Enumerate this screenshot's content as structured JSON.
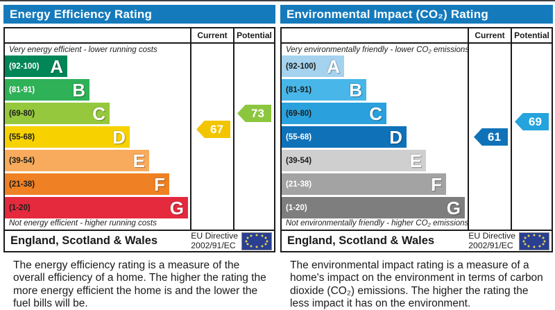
{
  "colors": {
    "header_bg": "#157abc",
    "flag_bg": "#2a3f92",
    "flag_star": "#e8d44d",
    "border": "#1a1a1a"
  },
  "left": {
    "title": "Energy Efficiency Rating",
    "columns": {
      "current": "Current",
      "potential": "Potential"
    },
    "top_note": "Very energy efficient - lower running costs",
    "bottom_note": "Not energy efficient - higher running costs",
    "bands": [
      {
        "letter": "A",
        "range": "(92-100)",
        "color": "#008657",
        "text": "#ffffff"
      },
      {
        "letter": "B",
        "range": "(81-91)",
        "color": "#2eb157",
        "text": "#ffffff"
      },
      {
        "letter": "C",
        "range": "(69-80)",
        "color": "#95c83c",
        "text": "#1d1d1b"
      },
      {
        "letter": "D",
        "range": "(55-68)",
        "color": "#f7d200",
        "text": "#1d1d1b"
      },
      {
        "letter": "E",
        "range": "(39-54)",
        "color": "#f8ab5c",
        "text": "#1d1d1b"
      },
      {
        "letter": "F",
        "range": "(21-38)",
        "color": "#ef8023",
        "text": "#1d1d1b"
      },
      {
        "letter": "G",
        "range": "(1-20)",
        "color": "#e52a3d",
        "text": "#1d1d1b"
      }
    ],
    "current": {
      "value": "67",
      "color": "#f2c500"
    },
    "potential": {
      "value": "73",
      "color": "#8cc63e"
    },
    "footer": {
      "region": "England, Scotland & Wales",
      "directive_line1": "EU Directive",
      "directive_line2": "2002/91/EC"
    },
    "description": "The energy efficiency rating is a measure of the overall efficiency of a home. The higher the rating the more energy efficient the home is and the lower the fuel bills will be."
  },
  "right": {
    "title": "Environmental Impact (CO₂) Rating",
    "columns": {
      "current": "Current",
      "potential": "Potential"
    },
    "top_note": "Very environmentally friendly - lower CO₂ emissions",
    "bottom_note": "Not environmentally friendly - higher CO₂ emissions",
    "bands": [
      {
        "letter": "A",
        "range": "(92-100)",
        "color": "#a5d2ee",
        "text": "#1d1d1b"
      },
      {
        "letter": "B",
        "range": "(81-91)",
        "color": "#48b6e8",
        "text": "#1d1d1b"
      },
      {
        "letter": "C",
        "range": "(69-80)",
        "color": "#2aa1dc",
        "text": "#1d1d1b"
      },
      {
        "letter": "D",
        "range": "(55-68)",
        "color": "#0f72b9",
        "text": "#ffffff"
      },
      {
        "letter": "E",
        "range": "(39-54)",
        "color": "#cfcfcf",
        "text": "#1d1d1b"
      },
      {
        "letter": "F",
        "range": "(21-38)",
        "color": "#a3a3a3",
        "text": "#ffffff"
      },
      {
        "letter": "G",
        "range": "(1-20)",
        "color": "#7e7e7e",
        "text": "#ffffff"
      }
    ],
    "current": {
      "value": "61",
      "color": "#0f72b9"
    },
    "potential": {
      "value": "69",
      "color": "#24a3dd"
    },
    "footer": {
      "region": "England, Scotland & Wales",
      "directive_line1": "EU Directive",
      "directive_line2": "2002/91/EC"
    },
    "description": "The environmental impact rating is a measure of a home's impact on the environment in terms of carbon dioxide (CO₂) emissions. The higher the rating the less impact it has on the environment."
  },
  "chart_data": [
    {
      "type": "bar",
      "title": "Energy Efficiency Rating",
      "categories": [
        "A",
        "B",
        "C",
        "D",
        "E",
        "F",
        "G"
      ],
      "band_ranges": [
        "92-100",
        "81-91",
        "69-80",
        "55-68",
        "39-54",
        "21-38",
        "1-20"
      ],
      "band_colors": [
        "#008657",
        "#2eb157",
        "#95c83c",
        "#f7d200",
        "#f8ab5c",
        "#ef8023",
        "#e52a3d"
      ],
      "series": [
        {
          "name": "Current",
          "values": [
            67
          ],
          "band": "D",
          "color": "#f2c500"
        },
        {
          "name": "Potential",
          "values": [
            73
          ],
          "band": "C",
          "color": "#8cc63e"
        }
      ],
      "xlabel": "",
      "ylabel": "",
      "ylim": [
        1,
        100
      ],
      "annotations": [
        "Very energy efficient - lower running costs",
        "Not energy efficient - higher running costs"
      ],
      "footer": "England, Scotland & Wales — EU Directive 2002/91/EC"
    },
    {
      "type": "bar",
      "title": "Environmental Impact (CO₂) Rating",
      "categories": [
        "A",
        "B",
        "C",
        "D",
        "E",
        "F",
        "G"
      ],
      "band_ranges": [
        "92-100",
        "81-91",
        "69-80",
        "55-68",
        "39-54",
        "21-38",
        "1-20"
      ],
      "band_colors": [
        "#a5d2ee",
        "#48b6e8",
        "#2aa1dc",
        "#0f72b9",
        "#cfcfcf",
        "#a3a3a3",
        "#7e7e7e"
      ],
      "series": [
        {
          "name": "Current",
          "values": [
            61
          ],
          "band": "D",
          "color": "#0f72b9"
        },
        {
          "name": "Potential",
          "values": [
            69
          ],
          "band": "C",
          "color": "#24a3dd"
        }
      ],
      "xlabel": "",
      "ylabel": "",
      "ylim": [
        1,
        100
      ],
      "annotations": [
        "Very environmentally friendly - lower CO₂ emissions",
        "Not environmentally friendly - higher CO₂ emissions"
      ],
      "footer": "England, Scotland & Wales — EU Directive 2002/91/EC"
    }
  ]
}
